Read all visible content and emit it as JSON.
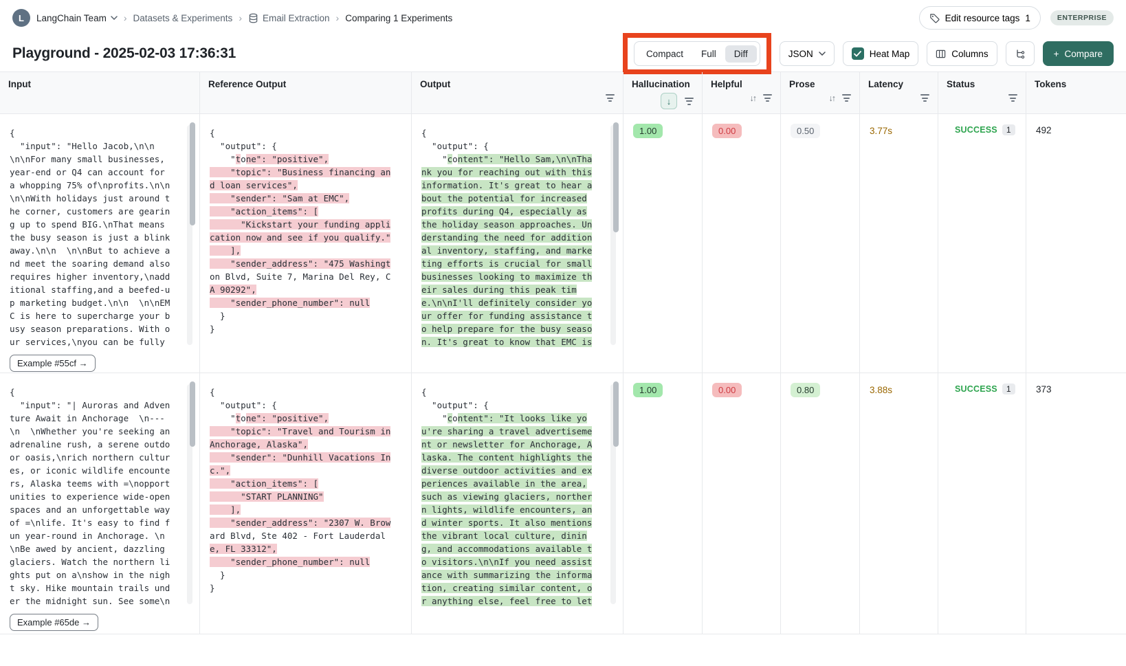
{
  "breadcrumb": {
    "avatar_letter": "L",
    "team": "LangChain Team",
    "datasets": "Datasets & Experiments",
    "dataset": "Email Extraction",
    "current": "Comparing 1 Experiments"
  },
  "topbar": {
    "edit_tags": "Edit resource tags",
    "edit_tags_count": "1",
    "plan": "ENTERPRISE"
  },
  "title": "Playground - 2025-02-03 17:36:31",
  "toolbar": {
    "mode_compact": "Compact",
    "mode_full": "Full",
    "mode_diff": "Diff",
    "active_mode": "Diff",
    "format": "JSON",
    "heatmap": "Heat Map",
    "columns": "Columns",
    "compare_plus": "+",
    "compare": "Compare",
    "annotation_color": "#e8431d",
    "accent_color": "#2c7064"
  },
  "columns": {
    "input": "Input",
    "reference": "Reference Output",
    "output": "Output",
    "hallucination": "Hallucination",
    "helpful": "Helpful",
    "prose": "Prose",
    "latency": "Latency",
    "status": "Status",
    "tokens": "Tokens"
  },
  "diff_colors": {
    "removed_bg": "#f5ccd1",
    "added_bg": "#c8e5c4"
  },
  "rows": [
    {
      "example": "Example #55cf →",
      "input": [
        "{",
        "  \"input\": \"Hello Jacob,\\n\\n",
        "\\n\\nFor many small businesses,",
        "year-end or Q4 can account for",
        "a whopping 75% of\\nprofits.\\n\\n",
        "\\n\\nWith holidays just around t",
        "he corner, customers are gearin",
        "g up to spend BIG.\\nThat means",
        "the busy season is just a blink",
        "away.\\n\\n  \\n\\nBut to achieve a",
        "nd meet the soaring demand also",
        "requires higher inventory,\\nadd",
        "itional staffing,and a beefed-u",
        "p marketing budget.\\n\\n  \\n\\nEM",
        "C is here to supercharge your b",
        "usy season preparations. With o",
        "ur services,\\nyou can be fully"
      ],
      "reference": [
        "{",
        "  \"output\": {",
        [
          [
            "    \"",
            0
          ],
          [
            "t",
            1
          ],
          [
            "o",
            0
          ],
          [
            "ne\": \"positive\",",
            1
          ]
        ],
        [
          [
            "    \"topic\": \"Business financing an",
            1
          ]
        ],
        [
          [
            "d loan services\",",
            1
          ]
        ],
        [
          [
            "    \"sender\": \"Sam at EMC\",",
            1
          ]
        ],
        [
          [
            "    \"action_items\": [",
            1
          ]
        ],
        [
          [
            "      \"Kickstart your funding appli",
            1
          ]
        ],
        [
          [
            "cation now and see if you qualify.\"",
            1
          ]
        ],
        [
          [
            "    ],",
            1
          ]
        ],
        [
          [
            "    \"sender_address\": \"475 Washingt",
            1
          ]
        ],
        "on Blvd, Suite 7, Marina Del Rey, C",
        [
          [
            "A 90292\",",
            1
          ]
        ],
        [
          [
            "    \"sender_phone_number\": null",
            1
          ]
        ],
        "  }",
        "}"
      ],
      "output": [
        "{",
        "  \"output\": {",
        [
          [
            "    \"",
            0
          ],
          [
            "c",
            1
          ],
          [
            "o",
            0
          ],
          [
            "ntent\": \"Hello Sam,\\n\\nTha",
            1
          ]
        ],
        [
          [
            "nk you for reaching out with this",
            1
          ]
        ],
        [
          [
            "information. It's great to hear a",
            1
          ]
        ],
        [
          [
            "bout the potential for increased",
            1
          ]
        ],
        [
          [
            "profits during Q4, especially as",
            1
          ]
        ],
        [
          [
            "the holiday season approaches. Un",
            1
          ]
        ],
        [
          [
            "derstanding the need for addition",
            1
          ]
        ],
        [
          [
            "al inventory, staffing, and marke",
            1
          ]
        ],
        [
          [
            "ting efforts is crucial for small",
            1
          ]
        ],
        [
          [
            "businesses looking to maximize th",
            1
          ]
        ],
        [
          [
            "eir sales during this peak tim",
            1
          ]
        ],
        [
          [
            "e.\\n\\nI'll definitely consider yo",
            1
          ]
        ],
        [
          [
            "ur offer for funding assistance t",
            1
          ]
        ],
        [
          [
            "o help prepare for the busy seaso",
            1
          ]
        ],
        [
          [
            "n. It's great to know that EMC is",
            1
          ]
        ]
      ],
      "hallucination": "1.00",
      "helpful": "0.00",
      "prose": "0.50",
      "latency": "3.77s",
      "status": "SUCCESS",
      "runs": "1",
      "tokens": "492"
    },
    {
      "example": "Example #65de →",
      "input": [
        "{",
        "  \"input\": \"| Auroras and Adven",
        "ture Await in Anchorage  \\n---",
        "\\n  \\nWhether you're seeking an",
        "adrenaline rush, a serene outdo",
        "or oasis,\\nrich northern cultur",
        "es, or iconic wildlife encounte",
        "rs, Alaska teems with =\\nopport",
        "unities to experience wide-open",
        "spaces and an unforgettable way",
        "of =\\nlife. It's easy to find f",
        "un year-round in Anchorage. \\n",
        "\\nBe awed by ancient, dazzling",
        "glaciers. Watch the northern li",
        "ghts put on a\\nshow in the nigh",
        "t sky. Hike mountain trails und",
        "er the midnight sun. See some\\n"
      ],
      "reference": [
        "{",
        "  \"output\": {",
        [
          [
            "    \"",
            0
          ],
          [
            "t",
            1
          ],
          [
            "o",
            0
          ],
          [
            "ne\": \"positive\",",
            1
          ]
        ],
        [
          [
            "    \"topic\": \"Travel and Tourism in",
            1
          ]
        ],
        [
          [
            "Anchorage, Alaska\",",
            1
          ]
        ],
        [
          [
            "    \"sender\": \"Dunhill Vacations In",
            1
          ]
        ],
        [
          [
            "c.\",",
            1
          ]
        ],
        [
          [
            "    \"action_items\": [",
            1
          ]
        ],
        [
          [
            "      \"START PLANNING\"",
            1
          ]
        ],
        [
          [
            "    ],",
            1
          ]
        ],
        [
          [
            "    \"sender_address\": \"2307 W. Brow",
            1
          ]
        ],
        "ard Blvd, Ste 402 - Fort Lauderdal",
        [
          [
            "e, FL 33312\",",
            1
          ]
        ],
        [
          [
            "    \"sender_phone_number\": null",
            1
          ]
        ],
        "  }",
        "}"
      ],
      "output": [
        "{",
        "  \"output\": {",
        [
          [
            "    \"",
            0
          ],
          [
            "c",
            1
          ],
          [
            "o",
            0
          ],
          [
            "ntent\": \"It looks like yo",
            1
          ]
        ],
        [
          [
            "u're sharing a travel advertiseme",
            1
          ]
        ],
        [
          [
            "nt or newsletter for Anchorage, A",
            1
          ]
        ],
        [
          [
            "laska. The content highlights the",
            1
          ]
        ],
        [
          [
            "diverse outdoor activities and ex",
            1
          ]
        ],
        [
          [
            "periences available in the area,",
            1
          ]
        ],
        [
          [
            "such as viewing glaciers, norther",
            1
          ]
        ],
        [
          [
            "n lights, wildlife encounters, an",
            1
          ]
        ],
        [
          [
            "d winter sports. It also mentions",
            1
          ]
        ],
        [
          [
            "the vibrant local culture, dinin",
            1
          ]
        ],
        [
          [
            "g, and accommodations available t",
            1
          ]
        ],
        [
          [
            "o visitors.\\n\\nIf you need assist",
            1
          ]
        ],
        [
          [
            "ance with summarizing the informa",
            1
          ]
        ],
        [
          [
            "tion, creating similar content, o",
            1
          ]
        ],
        [
          [
            "r anything else, feel free to let",
            1
          ]
        ]
      ],
      "hallucination": "1.00",
      "helpful": "0.00",
      "prose": "0.80",
      "latency": "3.88s",
      "status": "SUCCESS",
      "runs": "1",
      "tokens": "373"
    }
  ]
}
